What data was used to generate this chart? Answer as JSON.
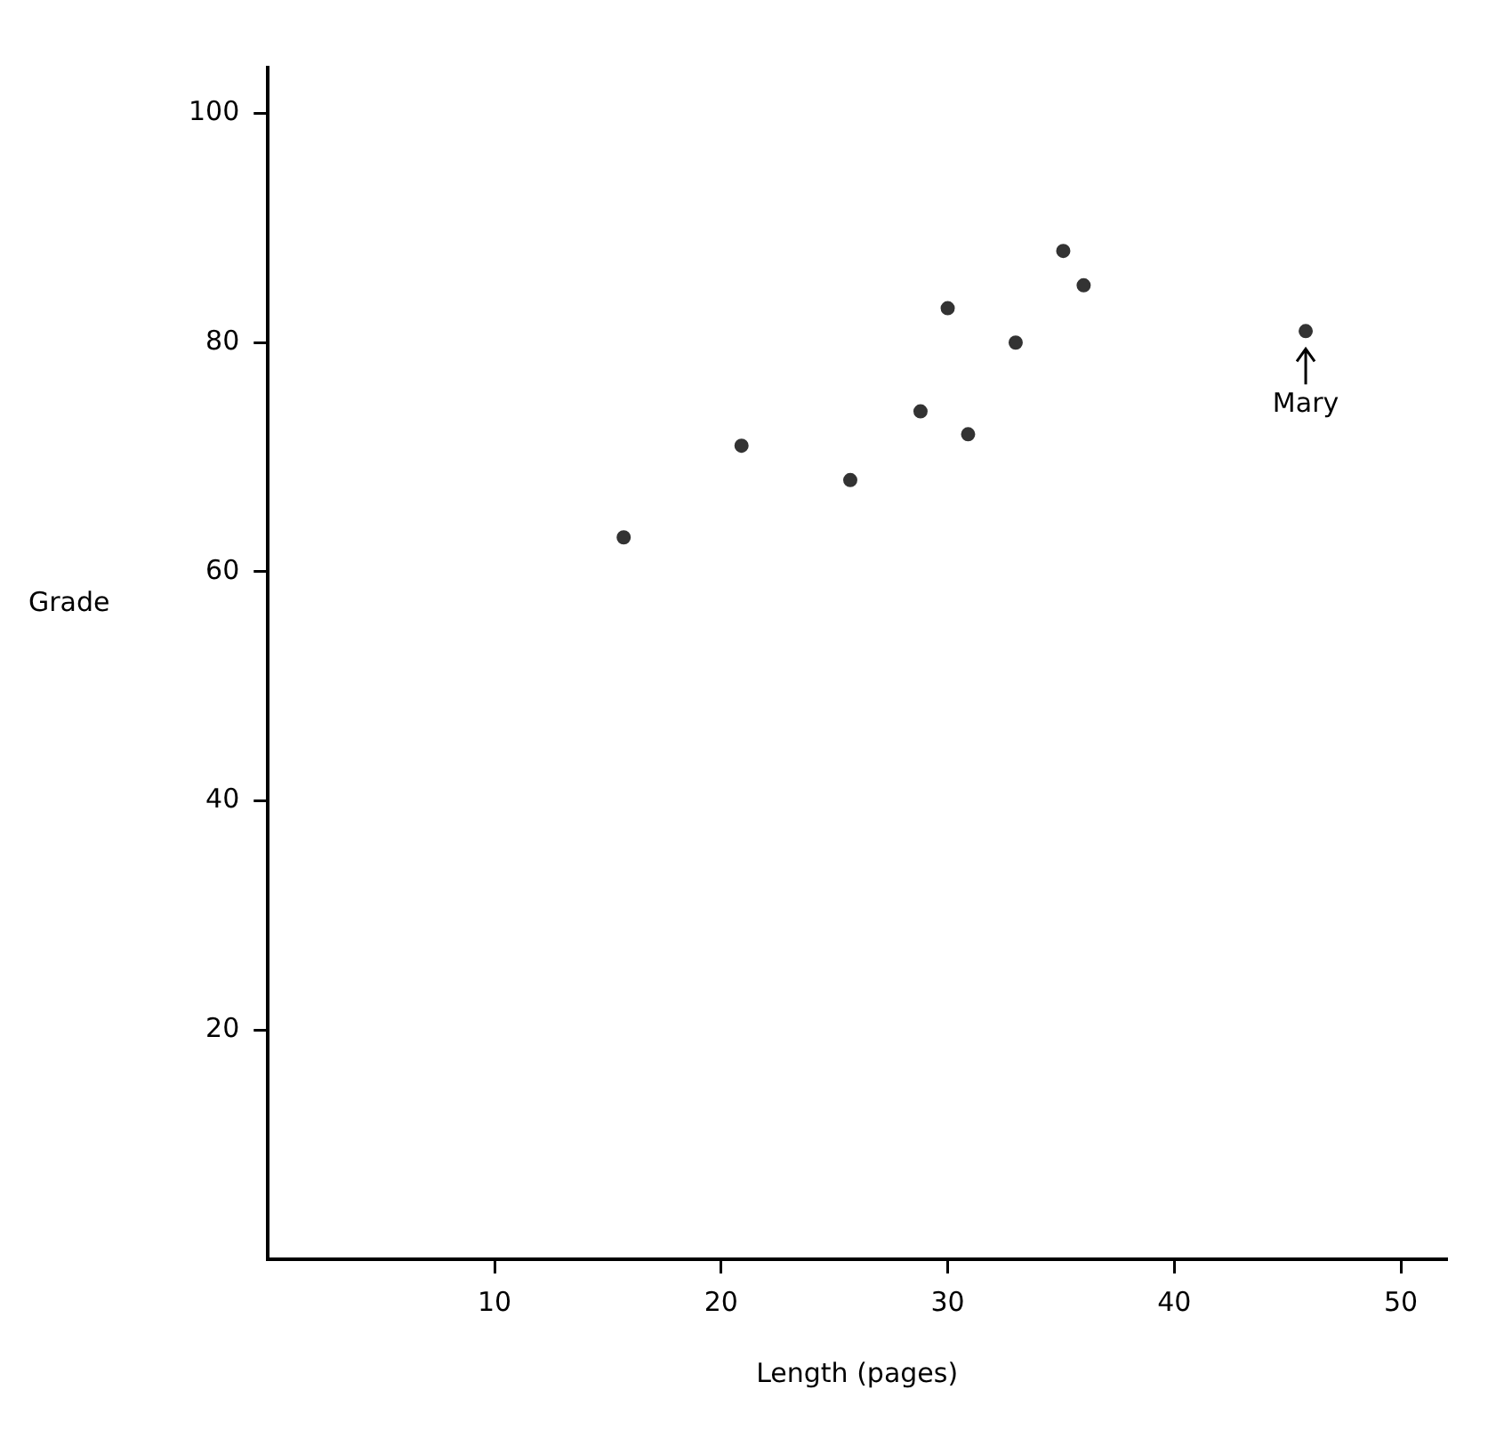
{
  "chart_data": {
    "type": "scatter",
    "xlabel": "Length (pages)",
    "ylabel": "Grade",
    "x": [
      15.7,
      20.9,
      25.7,
      28.8,
      30.0,
      30.9,
      33.0,
      35.1,
      36.0,
      45.8
    ],
    "series": [
      {
        "color": "#333333",
        "values": [
          63,
          71,
          68,
          74,
          83,
          72,
          80,
          88,
          85,
          81
        ]
      }
    ],
    "xlim": [
      0,
      52
    ],
    "ylim": [
      0,
      104
    ],
    "xticks": [
      10,
      20,
      30,
      40,
      50
    ],
    "yticks": [
      20,
      40,
      60,
      80,
      100
    ],
    "grid": false,
    "legend": false,
    "marker": "circle",
    "annotations": [
      {
        "text": "Mary",
        "x": 45.8,
        "y": 81
      }
    ]
  }
}
